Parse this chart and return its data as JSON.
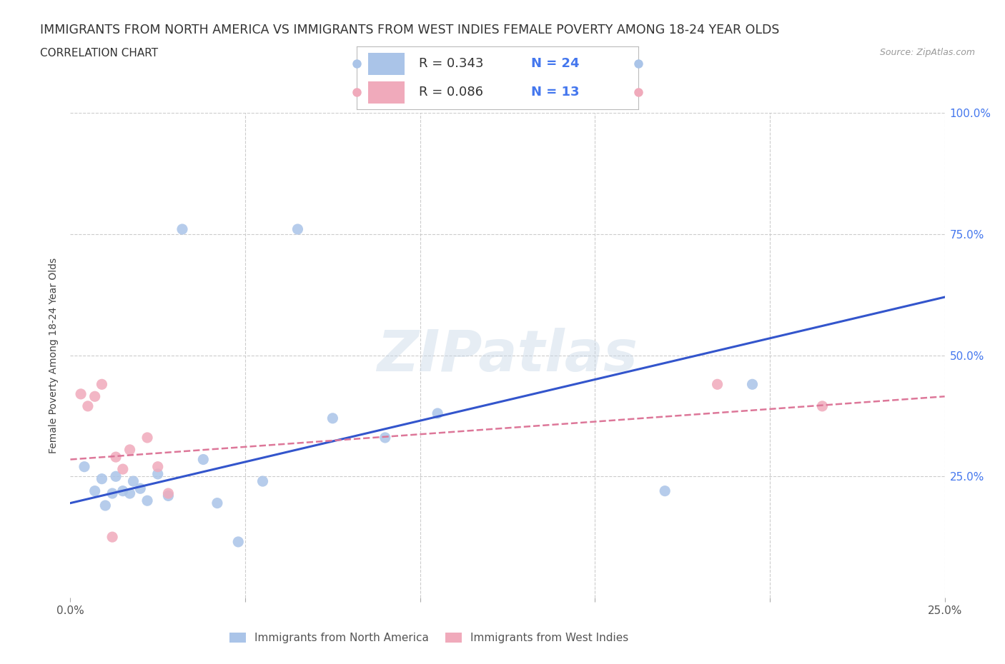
{
  "title": "IMMIGRANTS FROM NORTH AMERICA VS IMMIGRANTS FROM WEST INDIES FEMALE POVERTY AMONG 18-24 YEAR OLDS",
  "subtitle": "CORRELATION CHART",
  "source": "Source: ZipAtlas.com",
  "ylabel": "Female Poverty Among 18-24 Year Olds",
  "watermark": "ZIPatlas",
  "xlim": [
    0.0,
    0.25
  ],
  "ylim": [
    0.0,
    1.0
  ],
  "north_america_color": "#aac4e8",
  "west_indies_color": "#f0aabb",
  "north_america_R": 0.343,
  "north_america_N": 24,
  "west_indies_R": 0.086,
  "west_indies_N": 13,
  "north_america_line_color": "#3355cc",
  "west_indies_line_color": "#dd7799",
  "north_america_scatter_x": [
    0.004,
    0.007,
    0.009,
    0.01,
    0.012,
    0.013,
    0.015,
    0.017,
    0.018,
    0.02,
    0.022,
    0.025,
    0.028,
    0.032,
    0.038,
    0.042,
    0.048,
    0.055,
    0.065,
    0.075,
    0.09,
    0.105,
    0.17,
    0.195
  ],
  "north_america_scatter_y": [
    0.27,
    0.22,
    0.245,
    0.19,
    0.215,
    0.25,
    0.22,
    0.215,
    0.24,
    0.225,
    0.2,
    0.255,
    0.21,
    0.76,
    0.285,
    0.195,
    0.115,
    0.24,
    0.76,
    0.37,
    0.33,
    0.38,
    0.22,
    0.44
  ],
  "west_indies_scatter_x": [
    0.003,
    0.005,
    0.007,
    0.009,
    0.012,
    0.013,
    0.015,
    0.017,
    0.022,
    0.025,
    0.028,
    0.185,
    0.215
  ],
  "west_indies_scatter_y": [
    0.42,
    0.395,
    0.415,
    0.44,
    0.125,
    0.29,
    0.265,
    0.305,
    0.33,
    0.27,
    0.215,
    0.44,
    0.395
  ],
  "na_line_x0": 0.0,
  "na_line_y0": 0.195,
  "na_line_x1": 0.25,
  "na_line_y1": 0.62,
  "wi_line_x0": 0.0,
  "wi_line_y0": 0.285,
  "wi_line_x1": 0.25,
  "wi_line_y1": 0.415,
  "background_color": "#ffffff",
  "grid_color": "#cccccc",
  "right_tick_color": "#4477ee",
  "title_fontsize": 12.5,
  "subtitle_fontsize": 11,
  "source_fontsize": 9,
  "legend_fontsize": 13,
  "ylabel_fontsize": 10
}
